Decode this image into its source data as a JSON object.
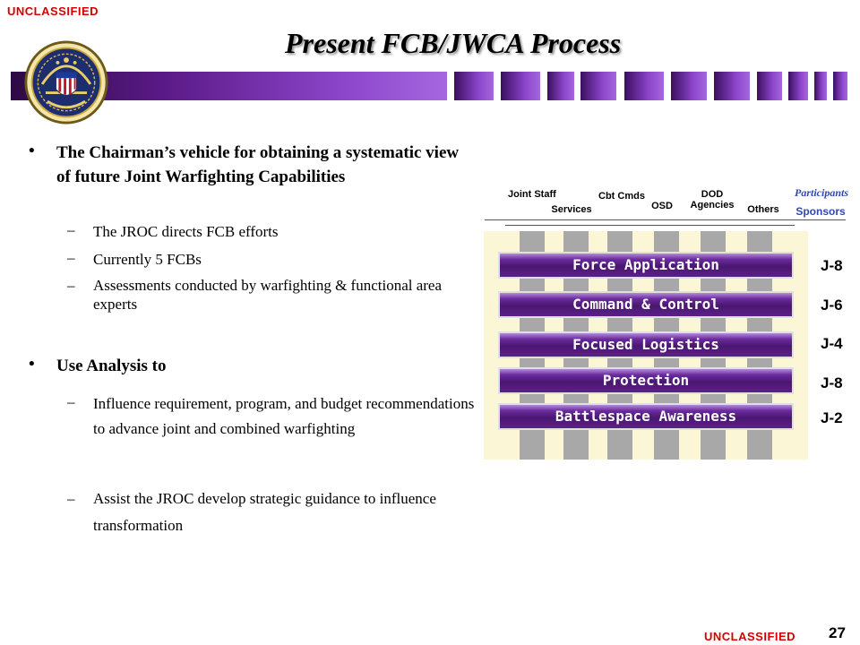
{
  "header": {
    "classification_top": "UNCLASSIFIED",
    "title": "Present FCB/JWCA Process"
  },
  "left": {
    "bullet1": {
      "text": "The Chairman’s vehicle for obtaining a systematic view of future Joint Warfighting Capabilities",
      "subs": [
        "The JROC directs FCB efforts",
        "Currently 5 FCBs",
        "Assessments conducted by warfighting & functional area experts"
      ]
    },
    "bullet2": {
      "text": "Use Analysis to",
      "subs": [
        "Influence requirement, program, and budget recommendations to advance joint and combined warfighting",
        "Assist the JROC develop strategic guidance to influence transformation"
      ]
    }
  },
  "matrix": {
    "columns": [
      "Joint Staff",
      "Services",
      "Cbt Cmds",
      "OSD",
      "DOD Agencies",
      "Others"
    ],
    "participants_label": "Participants",
    "sponsors_label": "Sponsors",
    "fcbs": [
      {
        "name": "Force Application",
        "sponsor": "J-8"
      },
      {
        "name": "Command & Control",
        "sponsor": "J-6"
      },
      {
        "name": "Focused Logistics",
        "sponsor": "J-4"
      },
      {
        "name": "Protection",
        "sponsor": "J-8"
      },
      {
        "name": "Battlespace Awareness",
        "sponsor": "J-2"
      }
    ],
    "colors": {
      "fcb_bar": "#4a1770",
      "sponsor_text": "#2f49b3",
      "background": "#fbf7d6",
      "column": "#a8a8a8"
    }
  },
  "footer": {
    "classification_bottom": "UNCLASSIFIED",
    "page_number": "27"
  }
}
